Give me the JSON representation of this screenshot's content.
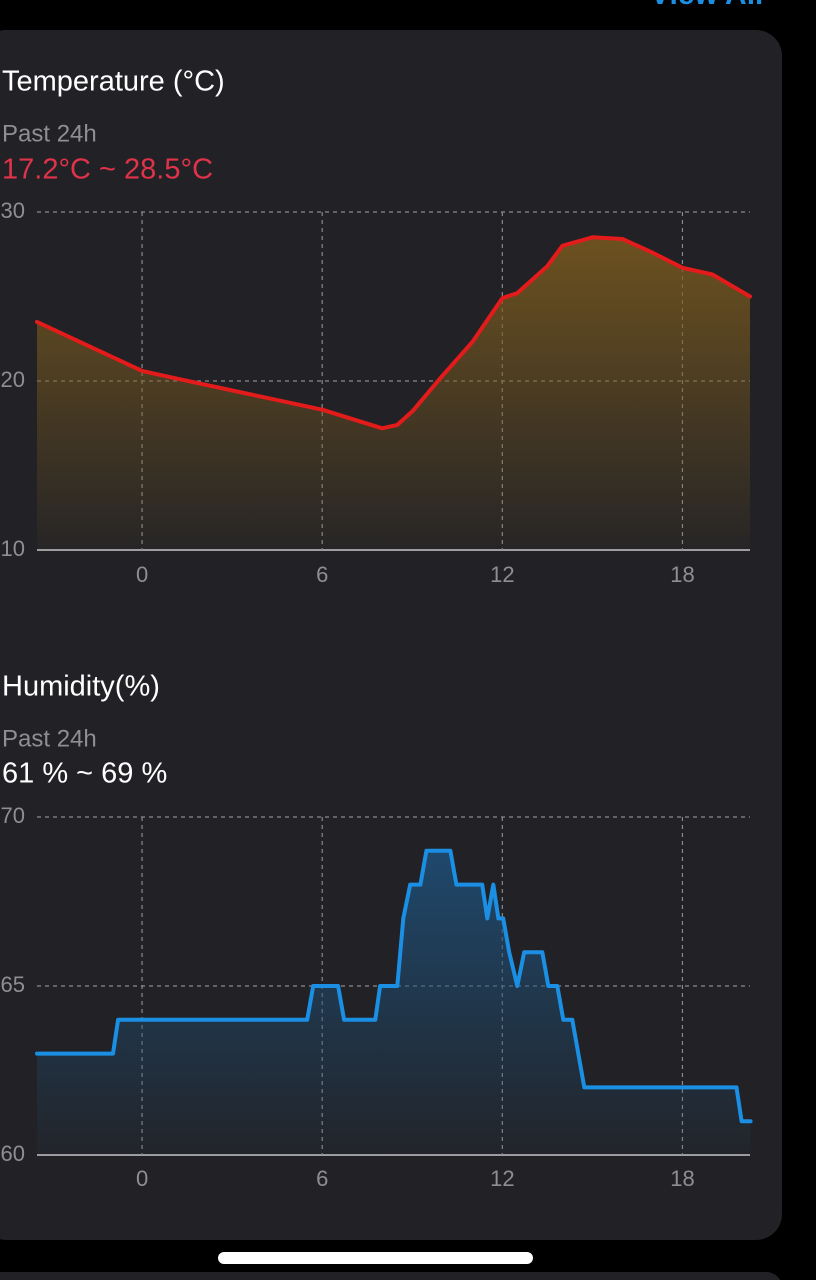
{
  "header": {
    "link": "View All"
  },
  "chart_data": [
    {
      "type": "area",
      "title": "Temperature (°C)",
      "subtitle": "Past 24h",
      "range_label": "17.2°C ~ 28.5°C",
      "range_color": "#e0334a",
      "x": [
        -3.5,
        0,
        1,
        6,
        8,
        8.5,
        9,
        10,
        11,
        12,
        12.5,
        13.5,
        14,
        15,
        16,
        17,
        18,
        19,
        20.25
      ],
      "values": [
        23.5,
        20.6,
        20.2,
        18.3,
        17.2,
        17.4,
        18.2,
        20.3,
        22.3,
        24.9,
        25.2,
        26.8,
        28.0,
        28.5,
        28.4,
        27.6,
        26.7,
        26.3,
        25.0
      ],
      "color": "#e31b1b",
      "fill": "#7a5a1e",
      "xlim": [
        -3.5,
        20.25
      ],
      "xticks": [
        0,
        6,
        12,
        18
      ],
      "ylim": [
        10,
        30
      ],
      "yticks": [
        10,
        20,
        30
      ],
      "grid": true
    },
    {
      "type": "area",
      "title": "Humidity(%)",
      "subtitle": "Past 24h",
      "range_label": "61 % ~ 69 %",
      "range_color": "#ffffff",
      "x": [
        -3.5,
        -0.97,
        -0.8,
        5.5,
        5.7,
        6.53,
        6.73,
        7.77,
        7.93,
        8.5,
        8.7,
        8.93,
        9.27,
        9.47,
        10.27,
        10.47,
        11.33,
        11.5,
        11.7,
        11.87,
        12.03,
        12.23,
        12.5,
        12.73,
        13.33,
        13.53,
        13.83,
        14.03,
        14.33,
        14.53,
        14.73,
        19.8,
        19.97,
        20.27
      ],
      "values": [
        63,
        63,
        64,
        64,
        65,
        65,
        64,
        64,
        65,
        65,
        67,
        68,
        68,
        69,
        69,
        68,
        68,
        67,
        68,
        67,
        67,
        66,
        65,
        66,
        66,
        65,
        65,
        64,
        64,
        63,
        62,
        62,
        61,
        61
      ],
      "color": "#1a8fe3",
      "fill": "#1e4f78",
      "xlim": [
        -3.5,
        20.25
      ],
      "xticks": [
        0,
        6,
        12,
        18
      ],
      "ylim": [
        60,
        70
      ],
      "yticks": [
        60,
        65,
        70
      ],
      "grid": true
    }
  ]
}
